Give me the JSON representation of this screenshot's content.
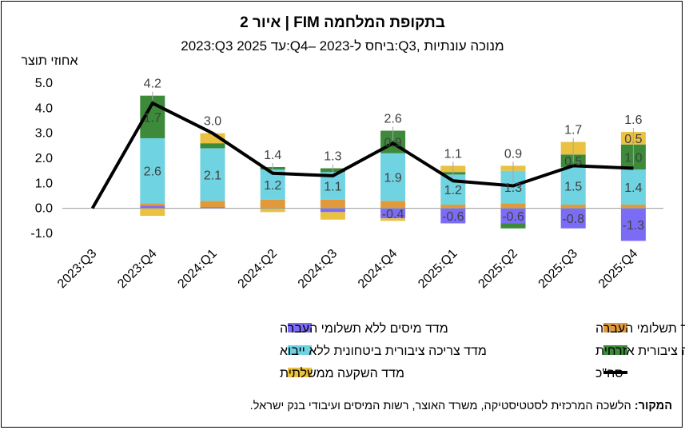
{
  "title": "איור 2 | FIM בתקופת המלחמה",
  "subtitle": "2023:Q3 עד 2025:Q4– ביחס ל-2023:Q3, מנוכה עונתיות",
  "source": {
    "label": "המקור:",
    "text": " הלשכה המרכזית לסטטיסטיקה, משרד האוצר, רשות המיסים ועיבודי בנק ישראל."
  },
  "chart_data": {
    "type": "bar",
    "stacked": true,
    "ylabel": "אחוזי תוצר",
    "ylim": [
      -1.0,
      5.0
    ],
    "yticks": [
      "5.0",
      "4.0",
      "3.0",
      "2.0",
      "1.0",
      "0.0",
      "-1.0"
    ],
    "categories": [
      "2023:Q3",
      "2023:Q4",
      "2024:Q1",
      "2024:Q2",
      "2024:Q3",
      "2024:Q4",
      "2025:Q1",
      "2025:Q2",
      "2025:Q3",
      "2025:Q4"
    ],
    "series": [
      {
        "name": "מדד מיסים ללא תשלומי העברה",
        "color": "#7B6CF6",
        "values": [
          0,
          0.1,
          0.05,
          0,
          -0.15,
          -0.4,
          -0.6,
          -0.6,
          -0.8,
          -1.3
        ],
        "labels": [
          "",
          "",
          "",
          "",
          "",
          "-0.4",
          "-0.6",
          "-0.6",
          "-0.8",
          "-1.3"
        ]
      },
      {
        "name": "מדד תשלומי העברה",
        "color": "#E09A3C",
        "values": [
          0,
          0.1,
          0.25,
          0.35,
          0.35,
          0.3,
          0.15,
          0.2,
          0.15,
          0.15
        ],
        "labels": [
          "",
          "",
          "",
          "",
          "",
          "",
          "",
          "",
          "",
          ""
        ]
      },
      {
        "name": "מדד צריכה ציבורית ביטחונית ללא ייבוא",
        "color": "#6FD3E2",
        "values": [
          0,
          2.6,
          2.1,
          1.2,
          1.1,
          1.9,
          1.2,
          1.3,
          1.5,
          1.4
        ],
        "labels": [
          "",
          "2.6",
          "2.1",
          "1.2",
          "1.1",
          "1.9",
          "1.2",
          "1.3",
          "1.5",
          "1.4"
        ]
      },
      {
        "name": "מדד צריכה ציבורית אזרחית",
        "color": "#3C8A3A",
        "values": [
          0,
          1.7,
          0.2,
          0.1,
          0.15,
          0.9,
          0.1,
          -0.2,
          0.5,
          1.0
        ],
        "labels": [
          "",
          "1.7",
          "",
          "",
          "",
          "0.9",
          "",
          "",
          "0.5",
          "1.0"
        ]
      },
      {
        "name": "מדד השקעה ממשלתית",
        "color": "#EAC140",
        "values": [
          0,
          -0.3,
          0.4,
          -0.15,
          -0.3,
          -0.1,
          0.25,
          0.2,
          0.5,
          0.5
        ],
        "labels": [
          "",
          "",
          "",
          "",
          "",
          "",
          "",
          "",
          "",
          "0.5"
        ]
      }
    ],
    "total": {
      "name": "סה\"כ",
      "color": "#000000",
      "values": [
        0,
        4.2,
        3.0,
        1.4,
        1.3,
        2.6,
        1.1,
        0.9,
        1.7,
        1.6
      ],
      "labels": [
        "",
        "4.2",
        "3.0",
        "1.4",
        "1.3",
        "2.6",
        "1.1",
        "0.9",
        "1.7",
        "1.6"
      ]
    },
    "legend": {
      "rows": [
        [
          "מדד תשלומי העברה",
          "מדד מיסים ללא תשלומי העברה"
        ],
        [
          "מדד צריכה ציבורית אזרחית",
          "מדד צריכה ציבורית ביטחונית ללא ייבוא"
        ],
        [
          "סה\"כ",
          "מדד השקעה ממשלתית"
        ]
      ],
      "placement": "bottom"
    }
  }
}
